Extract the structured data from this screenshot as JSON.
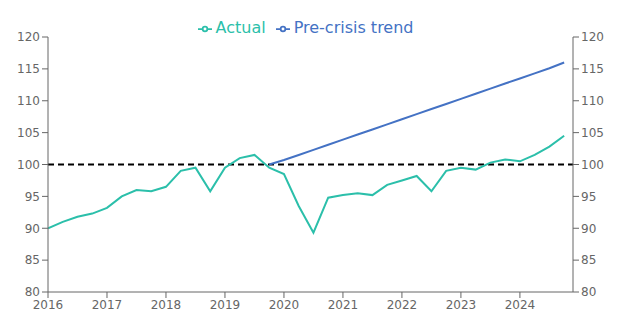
{
  "chart_data": {
    "type": "line",
    "x": [
      2016.0,
      2016.25,
      2016.5,
      2016.75,
      2017.0,
      2017.25,
      2017.5,
      2017.75,
      2018.0,
      2018.25,
      2018.5,
      2018.75,
      2019.0,
      2019.25,
      2019.5,
      2019.75,
      2020.0,
      2020.25,
      2020.5,
      2020.75,
      2021.0,
      2021.25,
      2021.5,
      2021.75,
      2022.0,
      2022.25,
      2022.5,
      2022.75,
      2023.0,
      2023.25,
      2023.5,
      2023.75,
      2024.0,
      2024.25,
      2024.5,
      2024.75
    ],
    "series": [
      {
        "name": "Pre-crisis trend",
        "color": "#4472C4",
        "values": [
          null,
          null,
          null,
          null,
          null,
          null,
          null,
          null,
          null,
          null,
          null,
          null,
          null,
          null,
          null,
          100.0,
          100.7,
          101.5,
          102.3,
          103.1,
          103.9,
          104.7,
          105.5,
          106.3,
          107.1,
          107.9,
          108.7,
          109.5,
          110.3,
          111.1,
          111.9,
          112.7,
          113.5,
          114.3,
          115.1,
          116.0
        ]
      },
      {
        "name": "Actual",
        "color": "#2BBFAA",
        "values": [
          90.0,
          91.0,
          91.8,
          92.3,
          93.2,
          95.0,
          96.0,
          95.8,
          96.5,
          99.0,
          99.5,
          95.8,
          99.5,
          101.0,
          101.5,
          99.5,
          98.5,
          93.5,
          89.3,
          94.8,
          95.2,
          95.5,
          95.2,
          96.8,
          97.5,
          98.2,
          95.8,
          99.0,
          99.5,
          99.2,
          100.3,
          100.8,
          100.5,
          101.5,
          102.8,
          104.5
        ]
      }
    ],
    "xlim": [
      2016.0,
      2024.9
    ],
    "xticks": [
      2016,
      2017,
      2018,
      2019,
      2020,
      2021,
      2022,
      2023,
      2024
    ],
    "ylim": [
      80,
      120
    ],
    "yticks": [
      80,
      85,
      90,
      95,
      100,
      105,
      110,
      115,
      120
    ],
    "y2lim": [
      80,
      120
    ],
    "y2ticks": [
      80,
      85,
      90,
      95,
      100,
      105,
      110,
      115,
      120
    ],
    "reference_line": {
      "y": 100,
      "color": "#000000",
      "line_style": "dashed"
    },
    "legend": "top",
    "grid": false
  }
}
